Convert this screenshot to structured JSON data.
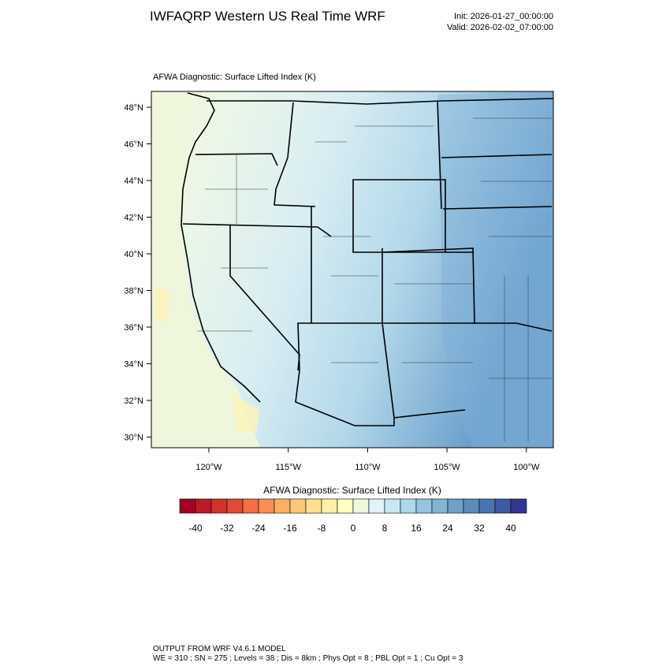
{
  "header": {
    "title": "IWFAQRP Western US Real Time WRF",
    "init": "Init: 2026-01-27_00:00:00",
    "valid": "Valid: 2026-02-02_07:00:00"
  },
  "map": {
    "subtitle": "AFWA Diagnostic: Surface Lifted Index   (K)",
    "lat_labels": [
      "48°N",
      "46°N",
      "44°N",
      "42°N",
      "40°N",
      "38°N",
      "36°N",
      "34°N",
      "32°N",
      "30°N"
    ],
    "lon_labels": [
      "120°W",
      "115°W",
      "110°W",
      "105°W",
      "100°W"
    ]
  },
  "colorbar": {
    "title": "AFWA Diagnostic: Surface Lifted Index  (K)",
    "colors": [
      "#a50026",
      "#be1827",
      "#d73027",
      "#e34933",
      "#f46d43",
      "#f88e52",
      "#fdae61",
      "#fec776",
      "#fee090",
      "#fff0a8",
      "#ffffbf",
      "#eef8dc",
      "#e0f3f8",
      "#c9e7f1",
      "#abd9e9",
      "#92c5de",
      "#7fb5d6",
      "#6ba1cb",
      "#5a8cc0",
      "#4575b4",
      "#3c59a6",
      "#313695"
    ],
    "ticks": [
      -40,
      -32,
      -24,
      -16,
      -8,
      0,
      8,
      16,
      24,
      32,
      40
    ]
  },
  "footer": {
    "line1": "OUTPUT FROM WRF V4.6.1 MODEL",
    "line2": "WE = 310 ; SN = 275 ; Levels = 38 ; Dis = 8km ; Phys Opt = 8 ; PBL Opt = 1 ; Cu Opt = 3"
  }
}
